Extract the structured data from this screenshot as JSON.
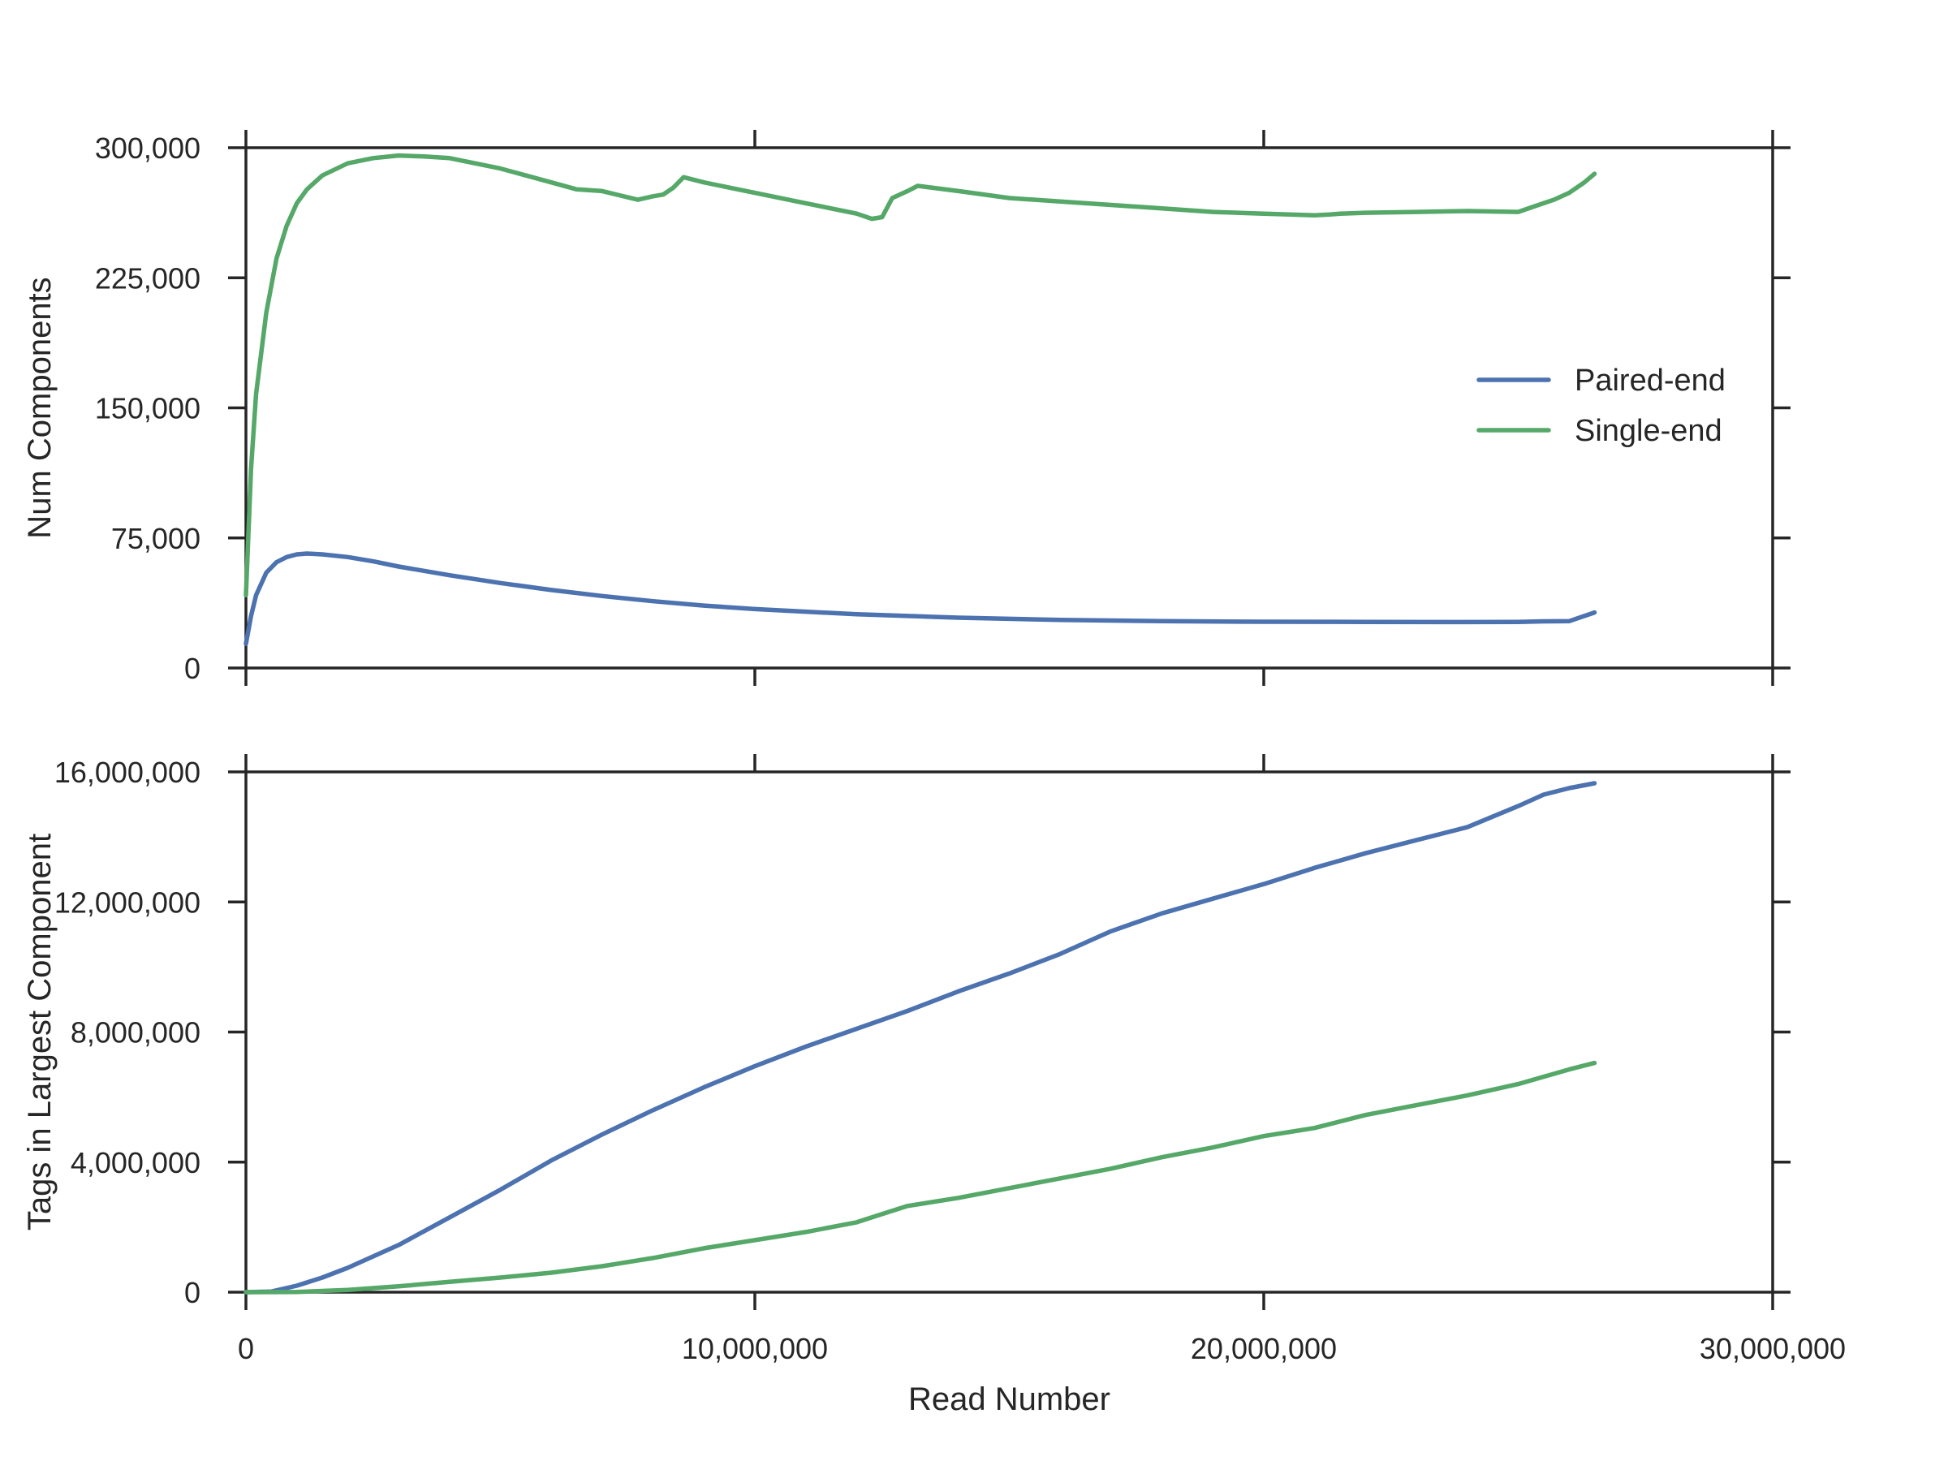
{
  "chart_data": [
    {
      "type": "line",
      "xlabel": "",
      "ylabel": "Num Components",
      "xlim": [
        0,
        30000000
      ],
      "ylim": [
        0,
        300000
      ],
      "x_ticks": [
        0,
        10000000,
        20000000,
        30000000
      ],
      "y_ticks": [
        0,
        75000,
        150000,
        225000,
        300000
      ],
      "y_tick_labels": [
        "0",
        "75,000",
        "150,000",
        "225,000",
        "300,000"
      ],
      "grid": false,
      "legend": {
        "position": "center-right",
        "entries": [
          "Paired-end",
          "Single-end"
        ]
      },
      "series": [
        {
          "name": "Paired-end",
          "color": "#4c72b0",
          "x": [
            0,
            100000,
            200000,
            400000,
            600000,
            800000,
            1000000,
            1200000,
            1500000,
            2000000,
            2500000,
            3000000,
            4000000,
            5000000,
            6000000,
            7000000,
            8000000,
            9000000,
            10000000,
            12000000,
            14000000,
            16000000,
            18000000,
            20000000,
            22000000,
            24000000,
            25000000,
            25500000,
            26000000,
            26500000
          ],
          "y": [
            14000,
            30000,
            42000,
            55000,
            61000,
            64000,
            65500,
            66000,
            65500,
            64000,
            61500,
            58500,
            53500,
            49000,
            45000,
            41500,
            38500,
            36000,
            34000,
            31000,
            29000,
            27700,
            27000,
            26700,
            26600,
            26500,
            26600,
            26900,
            27000,
            32000
          ]
        },
        {
          "name": "Single-end",
          "color": "#55a868",
          "x": [
            0,
            100000,
            200000,
            400000,
            600000,
            800000,
            1000000,
            1200000,
            1500000,
            2000000,
            2500000,
            3000000,
            3500000,
            4000000,
            5000000,
            6000000,
            6500000,
            7000000,
            7700000,
            8000000,
            8200000,
            8400000,
            8600000,
            9000000,
            10000000,
            11000000,
            12000000,
            12300000,
            12500000,
            12700000,
            13000000,
            13200000,
            14000000,
            15000000,
            16000000,
            17000000,
            18000000,
            19000000,
            20000000,
            21000000,
            21300000,
            21500000,
            22000000,
            23000000,
            24000000,
            25000000,
            25300000,
            25700000,
            26000000,
            26300000,
            26500000
          ],
          "y": [
            42000,
            115000,
            158000,
            205000,
            236000,
            255000,
            268000,
            276000,
            284000,
            291000,
            294000,
            295500,
            295000,
            294000,
            288000,
            280000,
            276000,
            275000,
            270000,
            272000,
            273000,
            277000,
            283000,
            280000,
            274000,
            268000,
            262000,
            259000,
            260000,
            271000,
            275000,
            278000,
            275000,
            271000,
            269000,
            267000,
            265000,
            263000,
            262000,
            261000,
            261500,
            262000,
            262500,
            263000,
            263500,
            263000,
            266000,
            270000,
            274000,
            280000,
            285000
          ]
        }
      ]
    },
    {
      "type": "line",
      "xlabel": "Read Number",
      "ylabel": "Tags in Largest Component",
      "xlim": [
        0,
        30000000
      ],
      "ylim": [
        0,
        16000000
      ],
      "x_ticks": [
        0,
        10000000,
        20000000,
        30000000
      ],
      "x_tick_labels": [
        "0",
        "10,000,000",
        "20,000,000",
        "30,000,000"
      ],
      "y_ticks": [
        0,
        4000000,
        8000000,
        12000000,
        16000000
      ],
      "y_tick_labels": [
        "0",
        "4,000,000",
        "8,000,000",
        "12,000,000",
        "16,000,000"
      ],
      "grid": false,
      "series": [
        {
          "name": "Paired-end",
          "color": "#4c72b0",
          "x": [
            0,
            500000,
            1000000,
            1500000,
            2000000,
            3000000,
            4000000,
            5000000,
            6000000,
            7000000,
            8000000,
            9000000,
            10000000,
            11000000,
            12000000,
            13000000,
            14000000,
            15000000,
            16000000,
            17000000,
            18000000,
            19000000,
            20000000,
            21000000,
            22000000,
            23000000,
            24000000,
            25000000,
            25500000,
            26000000,
            26500000
          ],
          "y": [
            0,
            20000,
            200000,
            450000,
            750000,
            1450000,
            2300000,
            3150000,
            4050000,
            4850000,
            5600000,
            6300000,
            6950000,
            7550000,
            8100000,
            8650000,
            9250000,
            9800000,
            10400000,
            11100000,
            11650000,
            12100000,
            12550000,
            13050000,
            13500000,
            13900000,
            14300000,
            14950000,
            15300000,
            15500000,
            15650000
          ]
        },
        {
          "name": "Single-end",
          "color": "#55a868",
          "x": [
            0,
            1000000,
            2000000,
            3000000,
            4000000,
            5000000,
            6000000,
            7000000,
            8000000,
            9000000,
            10000000,
            11000000,
            12000000,
            12500000,
            13000000,
            14000000,
            15000000,
            16000000,
            17000000,
            18000000,
            19000000,
            20000000,
            21000000,
            22000000,
            23000000,
            24000000,
            25000000,
            26000000,
            26500000
          ],
          "y": [
            0,
            5000,
            70000,
            180000,
            320000,
            450000,
            600000,
            800000,
            1050000,
            1350000,
            1600000,
            1850000,
            2150000,
            2400000,
            2650000,
            2900000,
            3200000,
            3500000,
            3800000,
            4150000,
            4450000,
            4800000,
            5050000,
            5450000,
            5750000,
            6050000,
            6400000,
            6850000,
            7050000
          ]
        }
      ]
    }
  ]
}
